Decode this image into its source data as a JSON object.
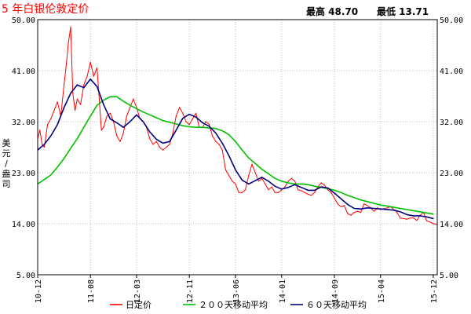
{
  "header": {
    "title": "5 年白银伦敦定价",
    "high_label": "最高 48.70",
    "low_label": "最低 13.71"
  },
  "unit_label": "美元/盎司",
  "chart_data": {
    "type": "line",
    "ylim": [
      5,
      50
    ],
    "y_ticks": [
      "5.00",
      "14.00",
      "23.00",
      "32.00",
      "41.00",
      "50.00"
    ],
    "x_ticks": [
      "10-12",
      "11-08",
      "12-03",
      "12-11",
      "13-06",
      "14-01",
      "14-09",
      "15-04",
      "15-12"
    ],
    "grid": true,
    "legend_position": "bottom",
    "colors": {
      "daily": "#ff0000",
      "ma200": "#00c000",
      "ma60": "#000080",
      "grid": "#bcbcbc",
      "axis": "#000000"
    },
    "series": [
      {
        "name": "日定价",
        "color": "#ff0000",
        "points": [
          [
            "10-12",
            29.0
          ],
          [
            "10-12",
            30.5
          ],
          [
            "10-12",
            28.0
          ],
          [
            "11-01",
            27.5
          ],
          [
            "11-01",
            31.5
          ],
          [
            "11-02",
            32.5
          ],
          [
            "11-03",
            35.5
          ],
          [
            "11-03",
            33.0
          ],
          [
            "11-04",
            38.5
          ],
          [
            "11-04",
            42.0
          ],
          [
            "11-04",
            46.0
          ],
          [
            "11-05",
            48.7
          ],
          [
            "11-05",
            37.0
          ],
          [
            "11-05",
            34.0
          ],
          [
            "11-06",
            36.0
          ],
          [
            "11-06",
            35.0
          ],
          [
            "11-07",
            38.5
          ],
          [
            "11-07",
            40.0
          ],
          [
            "11-08",
            42.5
          ],
          [
            "11-08",
            40.0
          ],
          [
            "11-09",
            41.5
          ],
          [
            "11-09",
            36.0
          ],
          [
            "11-09",
            30.5
          ],
          [
            "11-10",
            31.0
          ],
          [
            "11-10",
            33.0
          ],
          [
            "11-11",
            33.5
          ],
          [
            "11-11",
            32.0
          ],
          [
            "11-12",
            29.5
          ],
          [
            "11-12",
            28.5
          ],
          [
            "12-01",
            30.0
          ],
          [
            "12-01",
            33.0
          ],
          [
            "12-02",
            34.5
          ],
          [
            "12-02",
            36.0
          ],
          [
            "12-03",
            34.5
          ],
          [
            "12-03",
            32.5
          ],
          [
            "12-04",
            32.0
          ],
          [
            "12-04",
            31.0
          ],
          [
            "12-05",
            29.0
          ],
          [
            "12-05",
            28.0
          ],
          [
            "12-06",
            28.5
          ],
          [
            "12-06",
            27.5
          ],
          [
            "12-07",
            27.0
          ],
          [
            "12-07",
            27.5
          ],
          [
            "12-08",
            28.0
          ],
          [
            "12-08",
            30.0
          ],
          [
            "12-09",
            33.0
          ],
          [
            "12-09",
            34.5
          ],
          [
            "12-10",
            33.5
          ],
          [
            "12-10",
            32.0
          ],
          [
            "12-11",
            31.5
          ],
          [
            "12-11",
            32.5
          ],
          [
            "12-12",
            33.5
          ],
          [
            "12-12",
            31.0
          ],
          [
            "13-01",
            31.0
          ],
          [
            "13-01",
            32.0
          ],
          [
            "13-02",
            31.5
          ],
          [
            "13-02",
            29.5
          ],
          [
            "13-03",
            28.5
          ],
          [
            "13-03",
            28.0
          ],
          [
            "13-04",
            27.0
          ],
          [
            "13-04",
            23.5
          ],
          [
            "13-05",
            22.5
          ],
          [
            "13-05",
            21.5
          ],
          [
            "13-06",
            21.0
          ],
          [
            "13-06",
            19.5
          ],
          [
            "13-07",
            19.5
          ],
          [
            "13-07",
            20.0
          ],
          [
            "13-08",
            22.5
          ],
          [
            "13-08",
            24.5
          ],
          [
            "13-09",
            23.0
          ],
          [
            "13-09",
            21.5
          ],
          [
            "13-10",
            22.0
          ],
          [
            "13-10",
            21.0
          ],
          [
            "13-11",
            20.0
          ],
          [
            "13-11",
            20.5
          ],
          [
            "13-12",
            19.5
          ],
          [
            "13-12",
            19.5
          ],
          [
            "14-01",
            20.0
          ],
          [
            "14-01",
            20.5
          ],
          [
            "14-02",
            21.5
          ],
          [
            "14-02",
            22.0
          ],
          [
            "14-03",
            21.5
          ],
          [
            "14-03",
            20.0
          ],
          [
            "14-04",
            19.8
          ],
          [
            "14-04",
            19.5
          ],
          [
            "14-05",
            19.2
          ],
          [
            "14-05",
            19.0
          ],
          [
            "14-06",
            19.5
          ],
          [
            "14-06",
            20.5
          ],
          [
            "14-07",
            21.2
          ],
          [
            "14-07",
            20.8
          ],
          [
            "14-08",
            20.0
          ],
          [
            "14-08",
            19.5
          ],
          [
            "14-09",
            18.5
          ],
          [
            "14-09",
            17.5
          ],
          [
            "14-10",
            17.0
          ],
          [
            "14-10",
            17.2
          ],
          [
            "14-11",
            15.8
          ],
          [
            "14-11",
            15.5
          ],
          [
            "14-12",
            16.0
          ],
          [
            "14-12",
            16.2
          ],
          [
            "15-01",
            16.0
          ],
          [
            "15-01",
            17.5
          ],
          [
            "15-02",
            17.2
          ],
          [
            "15-02",
            16.8
          ],
          [
            "15-03",
            16.2
          ],
          [
            "15-03",
            16.8
          ],
          [
            "15-04",
            16.5
          ],
          [
            "15-05",
            16.8
          ],
          [
            "15-05",
            17.0
          ],
          [
            "15-06",
            16.5
          ],
          [
            "15-06",
            16.0
          ],
          [
            "15-07",
            15.0
          ],
          [
            "15-08",
            14.8
          ],
          [
            "15-08",
            15.0
          ],
          [
            "15-09",
            15.0
          ],
          [
            "15-09",
            14.6
          ],
          [
            "15-10",
            15.5
          ],
          [
            "15-10",
            16.0
          ],
          [
            "15-11",
            14.5
          ],
          [
            "15-11",
            14.3
          ],
          [
            "15-12",
            14.0
          ],
          [
            "15-12",
            13.9
          ]
        ]
      },
      {
        "name": "200天移动平均",
        "color": "#00c000",
        "points": [
          [
            "10-12",
            21.0
          ],
          [
            "11-01",
            21.8
          ],
          [
            "11-02",
            22.6
          ],
          [
            "11-03",
            24.0
          ],
          [
            "11-04",
            25.5
          ],
          [
            "11-05",
            27.3
          ],
          [
            "11-06",
            29.0
          ],
          [
            "11-07",
            31.0
          ],
          [
            "11-08",
            33.0
          ],
          [
            "11-09",
            34.9
          ],
          [
            "11-10",
            35.8
          ],
          [
            "11-11",
            36.4
          ],
          [
            "11-12",
            36.4
          ],
          [
            "12-01",
            35.6
          ],
          [
            "12-02",
            34.9
          ],
          [
            "12-03",
            34.3
          ],
          [
            "12-04",
            33.7
          ],
          [
            "12-05",
            33.2
          ],
          [
            "12-06",
            32.7
          ],
          [
            "12-07",
            32.2
          ],
          [
            "12-08",
            31.9
          ],
          [
            "12-09",
            31.6
          ],
          [
            "12-10",
            31.3
          ],
          [
            "12-11",
            31.1
          ],
          [
            "12-12",
            31.0
          ],
          [
            "13-01",
            31.0
          ],
          [
            "13-02",
            30.9
          ],
          [
            "13-03",
            30.8
          ],
          [
            "13-04",
            30.4
          ],
          [
            "13-05",
            29.7
          ],
          [
            "13-06",
            28.5
          ],
          [
            "13-07",
            27.0
          ],
          [
            "13-08",
            25.6
          ],
          [
            "13-09",
            24.6
          ],
          [
            "13-10",
            23.6
          ],
          [
            "13-11",
            22.8
          ],
          [
            "13-12",
            22.0
          ],
          [
            "14-01",
            21.5
          ],
          [
            "14-02",
            21.2
          ],
          [
            "14-03",
            21.0
          ],
          [
            "14-04",
            21.0
          ],
          [
            "14-05",
            20.9
          ],
          [
            "14-06",
            20.6
          ],
          [
            "14-07",
            20.4
          ],
          [
            "14-08",
            20.2
          ],
          [
            "14-09",
            19.9
          ],
          [
            "14-10",
            19.5
          ],
          [
            "14-11",
            19.0
          ],
          [
            "14-12",
            18.6
          ],
          [
            "15-01",
            18.2
          ],
          [
            "15-02",
            17.9
          ],
          [
            "15-03",
            17.6
          ],
          [
            "15-04",
            17.3
          ],
          [
            "15-05",
            17.1
          ],
          [
            "15-06",
            16.9
          ],
          [
            "15-07",
            16.7
          ],
          [
            "15-08",
            16.5
          ],
          [
            "15-09",
            16.3
          ],
          [
            "15-10",
            16.1
          ],
          [
            "15-11",
            15.9
          ],
          [
            "15-12",
            15.7
          ]
        ]
      },
      {
        "name": "60天移动平均",
        "color": "#000080",
        "points": [
          [
            "10-12",
            27.0
          ],
          [
            "11-01",
            28.0
          ],
          [
            "11-02",
            29.5
          ],
          [
            "11-03",
            31.5
          ],
          [
            "11-04",
            34.5
          ],
          [
            "11-05",
            37.0
          ],
          [
            "11-06",
            38.5
          ],
          [
            "11-07",
            38.0
          ],
          [
            "11-08",
            39.5
          ],
          [
            "11-09",
            38.2
          ],
          [
            "11-10",
            35.0
          ],
          [
            "11-11",
            32.5
          ],
          [
            "11-12",
            31.8
          ],
          [
            "12-01",
            31.0
          ],
          [
            "12-02",
            32.0
          ],
          [
            "12-03",
            33.2
          ],
          [
            "12-04",
            32.0
          ],
          [
            "12-05",
            30.2
          ],
          [
            "12-06",
            28.9
          ],
          [
            "12-07",
            28.2
          ],
          [
            "12-08",
            28.5
          ],
          [
            "12-09",
            30.5
          ],
          [
            "12-10",
            32.6
          ],
          [
            "12-11",
            33.3
          ],
          [
            "12-12",
            32.8
          ],
          [
            "13-01",
            31.8
          ],
          [
            "13-02",
            31.2
          ],
          [
            "13-03",
            30.0
          ],
          [
            "13-04",
            28.2
          ],
          [
            "13-05",
            26.0
          ],
          [
            "13-06",
            23.5
          ],
          [
            "13-07",
            21.7
          ],
          [
            "13-08",
            21.0
          ],
          [
            "13-09",
            21.6
          ],
          [
            "13-10",
            22.2
          ],
          [
            "13-11",
            21.5
          ],
          [
            "13-12",
            20.6
          ],
          [
            "14-01",
            20.1
          ],
          [
            "14-02",
            20.4
          ],
          [
            "14-03",
            20.9
          ],
          [
            "14-04",
            20.4
          ],
          [
            "14-05",
            19.9
          ],
          [
            "14-06",
            19.9
          ],
          [
            "14-07",
            20.5
          ],
          [
            "14-08",
            20.3
          ],
          [
            "14-09",
            19.4
          ],
          [
            "14-10",
            18.4
          ],
          [
            "14-11",
            17.4
          ],
          [
            "14-12",
            16.7
          ],
          [
            "15-01",
            16.6
          ],
          [
            "15-02",
            16.8
          ],
          [
            "15-03",
            16.7
          ],
          [
            "15-04",
            16.6
          ],
          [
            "15-05",
            16.5
          ],
          [
            "15-06",
            16.4
          ],
          [
            "15-07",
            16.1
          ],
          [
            "15-08",
            15.6
          ],
          [
            "15-09",
            15.4
          ],
          [
            "15-10",
            15.4
          ],
          [
            "15-11",
            15.2
          ],
          [
            "15-12",
            14.9
          ]
        ]
      }
    ],
    "legend": [
      {
        "label": "日定价",
        "color": "#ff0000"
      },
      {
        "label": "２００天移动平均",
        "color": "#00c000"
      },
      {
        "label": "６０天移动平均",
        "color": "#000080"
      }
    ]
  }
}
